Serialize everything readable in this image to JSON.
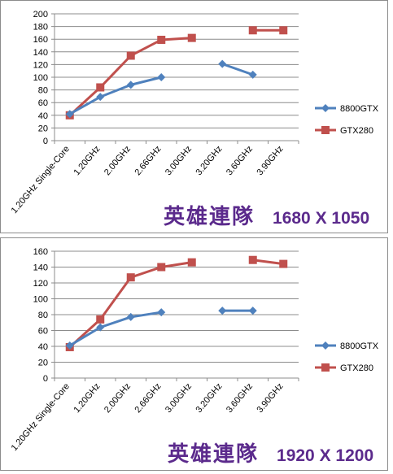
{
  "colors": {
    "series_0": "#4f81bd",
    "series_1": "#c0504d",
    "grid": "#8c8c8c",
    "caption": "#5b2a8c"
  },
  "chart_data": [
    {
      "type": "line",
      "categories": [
        "1.20GHz Single-Core",
        "1.20GHz",
        "2.00GHz",
        "2.66GHz",
        "3.00GHz",
        "3.20GHz",
        "3.60GHz",
        "3.90GHz"
      ],
      "ylim": [
        0,
        200
      ],
      "ystep": 20,
      "grid": true,
      "legend": "right",
      "series": [
        {
          "name": "8800GTX",
          "values": [
            42,
            69,
            88,
            100,
            null,
            121,
            104,
            null
          ]
        },
        {
          "name": "GTX280",
          "values": [
            40,
            84,
            134,
            159,
            162,
            null,
            174,
            174
          ]
        }
      ],
      "caption": {
        "title": "英雄連隊",
        "resolution": "1680 X 1050"
      }
    },
    {
      "type": "line",
      "categories": [
        "1.20GHz Single-Core",
        "1.20GHz",
        "2.00GHz",
        "2.66GHz",
        "3.00GHz",
        "3.20GHz",
        "3.60GHz",
        "3.90GHz"
      ],
      "ylim": [
        0,
        160
      ],
      "ystep": 20,
      "grid": true,
      "legend": "right",
      "series": [
        {
          "name": "8800GTX",
          "values": [
            41,
            64,
            77,
            83,
            null,
            85,
            85,
            null
          ]
        },
        {
          "name": "GTX280",
          "values": [
            39,
            74,
            127,
            140,
            146,
            null,
            149,
            144
          ]
        }
      ],
      "caption": {
        "title": "英雄連隊",
        "resolution": "1920 X 1200"
      }
    }
  ]
}
